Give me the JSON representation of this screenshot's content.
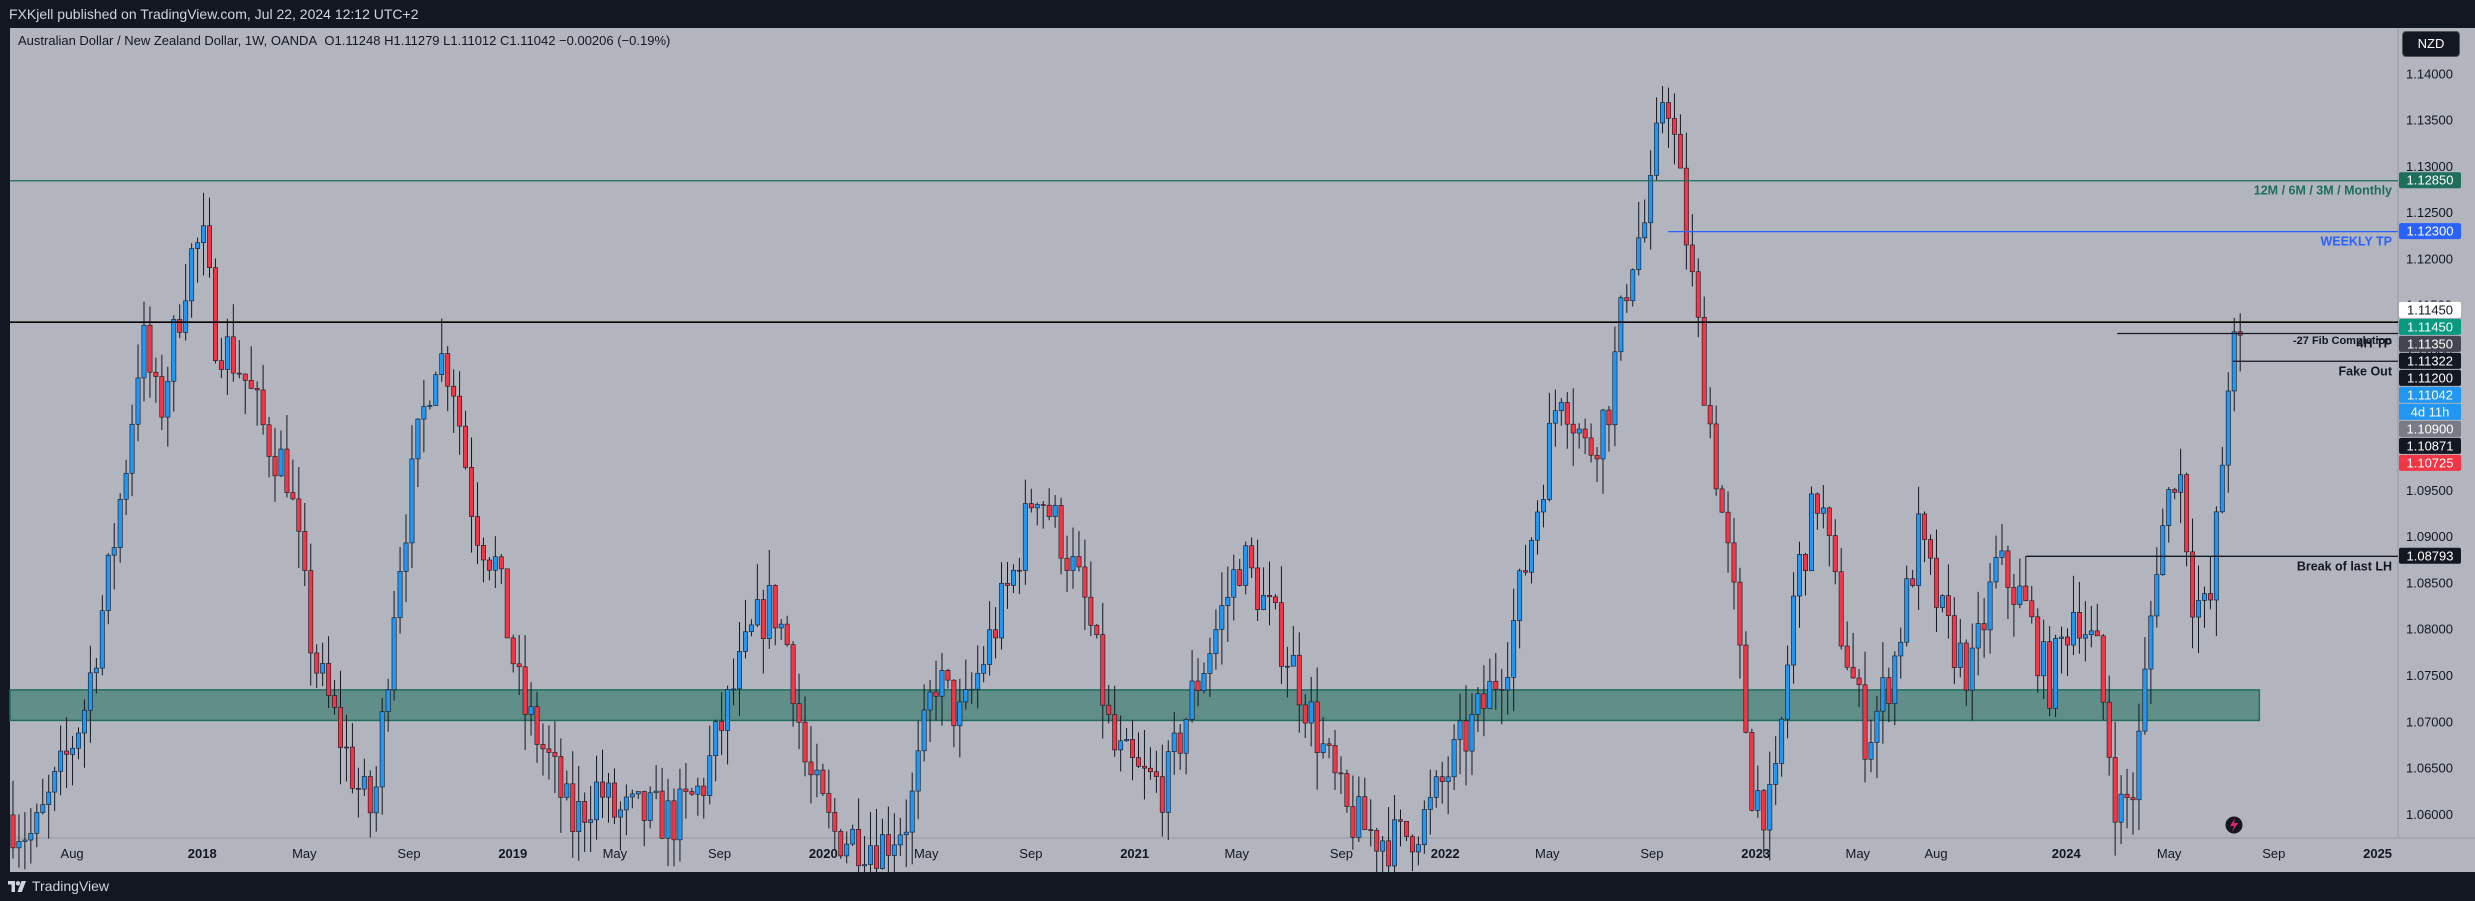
{
  "header": {
    "published": "FXKjell published on TradingView.com, Jul 22, 2024 12:12 UTC+2"
  },
  "footer": {
    "brand": "TradingView"
  },
  "currency_button": "NZD",
  "chart_data": {
    "type": "candlestick",
    "title": "Australian Dollar / New Zealand Dollar, 1W, OANDA",
    "ohlc_text": "O1.11248  H1.11279  L1.11012  C1.11042  −0.00206 (−0.19%)",
    "last_bar": {
      "open": 1.11248,
      "high": 1.11279,
      "low": 1.11012,
      "close": 1.11042,
      "change": -0.00206,
      "change_pct": -0.19
    },
    "ylim": [
      1.0575,
      1.145
    ],
    "y_ticks": [
      1.06,
      1.065,
      1.07,
      1.075,
      1.08,
      1.085,
      1.09,
      1.095,
      1.1,
      1.105,
      1.11,
      1.115,
      1.12,
      1.125,
      1.13,
      1.135,
      1.14
    ],
    "x_ticks": [
      {
        "label": "Aug",
        "date": "2017-08-01"
      },
      {
        "label": "2018",
        "date": "2018-01-01"
      },
      {
        "label": "May",
        "date": "2018-05-01"
      },
      {
        "label": "Sep",
        "date": "2018-09-01"
      },
      {
        "label": "2019",
        "date": "2019-01-01"
      },
      {
        "label": "May",
        "date": "2019-05-01"
      },
      {
        "label": "Sep",
        "date": "2019-09-01"
      },
      {
        "label": "2020",
        "date": "2020-01-01"
      },
      {
        "label": "May",
        "date": "2020-05-01"
      },
      {
        "label": "Sep",
        "date": "2020-09-01"
      },
      {
        "label": "2021",
        "date": "2021-01-01"
      },
      {
        "label": "May",
        "date": "2021-05-01"
      },
      {
        "label": "Sep",
        "date": "2021-09-01"
      },
      {
        "label": "2022",
        "date": "2022-01-01"
      },
      {
        "label": "May",
        "date": "2022-05-01"
      },
      {
        "label": "Sep",
        "date": "2022-09-01"
      },
      {
        "label": "2023",
        "date": "2023-01-01"
      },
      {
        "label": "May",
        "date": "2023-05-01"
      },
      {
        "label": "Aug",
        "date": "2023-08-01"
      },
      {
        "label": "2024",
        "date": "2024-01-01"
      },
      {
        "label": "May",
        "date": "2024-05-01"
      },
      {
        "label": "Sep",
        "date": "2024-09-01"
      },
      {
        "label": "2025",
        "date": "2025-01-01"
      }
    ],
    "x_range": [
      "2017-05-20",
      "2025-01-25"
    ],
    "path_points": [
      [
        "2017-05-20",
        1.06
      ],
      [
        "2017-06-20",
        1.0575
      ],
      [
        "2017-07-25",
        1.065
      ],
      [
        "2017-08-20",
        1.072
      ],
      [
        "2017-09-15",
        1.085
      ],
      [
        "2017-10-10",
        1.1
      ],
      [
        "2017-10-25",
        1.112
      ],
      [
        "2017-11-15",
        1.103
      ],
      [
        "2017-12-20",
        1.12
      ],
      [
        "2018-01-05",
        1.122
      ],
      [
        "2018-01-20",
        1.112
      ],
      [
        "2018-02-20",
        1.108
      ],
      [
        "2018-03-20",
        1.101
      ],
      [
        "2018-04-15",
        1.097
      ],
      [
        "2018-05-15",
        1.077
      ],
      [
        "2018-06-10",
        1.07
      ],
      [
        "2018-07-10",
        1.062
      ],
      [
        "2018-07-25",
        1.06
      ],
      [
        "2018-08-20",
        1.085
      ],
      [
        "2018-09-15",
        1.1
      ],
      [
        "2018-10-05",
        1.11
      ],
      [
        "2018-10-25",
        1.108
      ],
      [
        "2018-11-20",
        1.092
      ],
      [
        "2018-12-15",
        1.087
      ],
      [
        "2019-01-15",
        1.072
      ],
      [
        "2019-02-15",
        1.066
      ],
      [
        "2019-03-15",
        1.059
      ],
      [
        "2019-04-15",
        1.063
      ],
      [
        "2019-05-05",
        1.06
      ],
      [
        "2019-06-15",
        1.06
      ],
      [
        "2019-07-15",
        1.0595
      ],
      [
        "2019-08-15",
        1.063
      ],
      [
        "2019-09-15",
        1.072
      ],
      [
        "2019-10-15",
        1.08
      ],
      [
        "2019-11-05",
        1.083
      ],
      [
        "2019-11-25",
        1.078
      ],
      [
        "2019-12-15",
        1.065
      ],
      [
        "2020-01-15",
        1.058
      ],
      [
        "2020-03-15",
        1.057
      ],
      [
        "2020-04-15",
        1.06
      ],
      [
        "2020-05-15",
        1.075
      ],
      [
        "2020-06-15",
        1.07
      ],
      [
        "2020-07-15",
        1.078
      ],
      [
        "2020-08-15",
        1.086
      ],
      [
        "2020-09-10",
        1.096
      ],
      [
        "2020-10-10",
        1.09
      ],
      [
        "2020-11-10",
        1.082
      ],
      [
        "2020-12-10",
        1.067
      ],
      [
        "2021-01-10",
        1.064
      ],
      [
        "2021-02-10",
        1.063
      ],
      [
        "2021-03-10",
        1.072
      ],
      [
        "2021-04-10",
        1.08
      ],
      [
        "2021-05-10",
        1.088
      ],
      [
        "2021-06-10",
        1.082
      ],
      [
        "2021-07-10",
        1.076
      ],
      [
        "2021-08-10",
        1.068
      ],
      [
        "2021-09-10",
        1.06
      ],
      [
        "2021-10-10",
        1.058
      ],
      [
        "2021-11-10",
        1.057
      ],
      [
        "2021-12-15",
        1.06
      ],
      [
        "2022-01-20",
        1.067
      ],
      [
        "2022-02-20",
        1.072
      ],
      [
        "2022-03-20",
        1.078
      ],
      [
        "2022-04-20",
        1.092
      ],
      [
        "2022-05-20",
        1.107
      ],
      [
        "2022-06-20",
        1.099
      ],
      [
        "2022-07-15",
        1.104
      ],
      [
        "2022-08-10",
        1.12
      ],
      [
        "2022-09-01",
        1.125
      ],
      [
        "2022-09-20",
        1.14
      ],
      [
        "2022-10-05",
        1.13
      ],
      [
        "2022-10-25",
        1.115
      ],
      [
        "2022-11-15",
        1.1
      ],
      [
        "2022-12-10",
        1.083
      ],
      [
        "2022-12-31",
        1.063
      ],
      [
        "2023-01-25",
        1.06
      ],
      [
        "2023-02-20",
        1.085
      ],
      [
        "2023-03-20",
        1.095
      ],
      [
        "2023-04-15",
        1.08
      ],
      [
        "2023-05-15",
        1.068
      ],
      [
        "2023-06-15",
        1.076
      ],
      [
        "2023-07-15",
        1.09
      ],
      [
        "2023-08-15",
        1.08
      ],
      [
        "2023-09-15",
        1.075
      ],
      [
        "2023-10-15",
        1.087
      ],
      [
        "2023-11-15",
        1.083
      ],
      [
        "2023-12-15",
        1.074
      ],
      [
        "2024-01-15",
        1.083
      ],
      [
        "2024-02-10",
        1.077
      ],
      [
        "2024-03-05",
        1.06
      ],
      [
        "2024-03-25",
        1.063
      ],
      [
        "2024-04-20",
        1.088
      ],
      [
        "2024-05-15",
        1.099
      ],
      [
        "2024-06-01",
        1.084
      ],
      [
        "2024-06-20",
        1.081
      ],
      [
        "2024-07-05",
        1.097
      ],
      [
        "2024-07-15",
        1.11
      ],
      [
        "2024-07-22",
        1.11
      ]
    ],
    "horizontal_lines": [
      {
        "price": 1.1285,
        "label": "12M / 6M / 3M / Monthly",
        "color": "#1e6e5c",
        "from": "2017-05-20"
      },
      {
        "price": 1.123,
        "label": "WEEKLY TP",
        "color": "#2962ff",
        "from": "2022-09-20"
      },
      {
        "price": 1.11322,
        "label": "",
        "color": "#000000",
        "from": "2017-05-20"
      },
      {
        "price": 1.112,
        "label": "4H TP",
        "color": "#131722",
        "from": "2024-03-01"
      },
      {
        "price": 1.109,
        "label": "Fake Out",
        "color": "#131722",
        "from": "2024-07-15"
      },
      {
        "price": 1.08793,
        "label": "Break of last LH",
        "color": "#131722",
        "from": "2023-11-15"
      }
    ],
    "text_annotations": [
      {
        "text": "-27 Fib Completion",
        "price": 1.1113
      }
    ],
    "zone": {
      "top": 1.0735,
      "bottom": 1.0702,
      "from": "2017-05-20",
      "to": "2024-08-15",
      "color": "#1e6e5c"
    },
    "price_tags": [
      {
        "price": 1.1285,
        "text": "1.12850",
        "bg": "#1e6e5c",
        "fg": "#ffffff"
      },
      {
        "price": 1.123,
        "text": "1.12300",
        "bg": "#2962ff",
        "fg": "#ffffff"
      },
      {
        "price": 1.1145,
        "text": "1.11450",
        "bg": "#ffffff",
        "fg": "#131722"
      },
      {
        "price": 1.1145,
        "text": "1.11450",
        "bg": "#089981",
        "fg": "#ffffff"
      },
      {
        "price": 1.1135,
        "text": "1.11350",
        "bg": "#434651",
        "fg": "#ffffff"
      },
      {
        "price": 1.11322,
        "text": "1.11322",
        "bg": "#131722",
        "fg": "#ffffff"
      },
      {
        "price": 1.112,
        "text": "1.11200",
        "bg": "#131722",
        "fg": "#ffffff"
      },
      {
        "price": 1.11042,
        "text": "1.11042",
        "bg": "#2196f3",
        "fg": "#ffffff"
      },
      {
        "price": 1.109,
        "text": "1.10900",
        "bg": "#787b86",
        "fg": "#ffffff"
      },
      {
        "price": 1.10871,
        "text": "1.10871",
        "bg": "#131722",
        "fg": "#ffffff"
      },
      {
        "price": 1.10725,
        "text": "1.10725",
        "bg": "#f23645",
        "fg": "#ffffff"
      },
      {
        "price": 1.08793,
        "text": "1.08793",
        "bg": "#131722",
        "fg": "#ffffff"
      }
    ],
    "countdown": "4d 11h",
    "colors": {
      "up": "#2196f3",
      "down": "#f23645",
      "plot_bg": "#b2b5be",
      "axis_bg": "#b2b5be"
    }
  }
}
